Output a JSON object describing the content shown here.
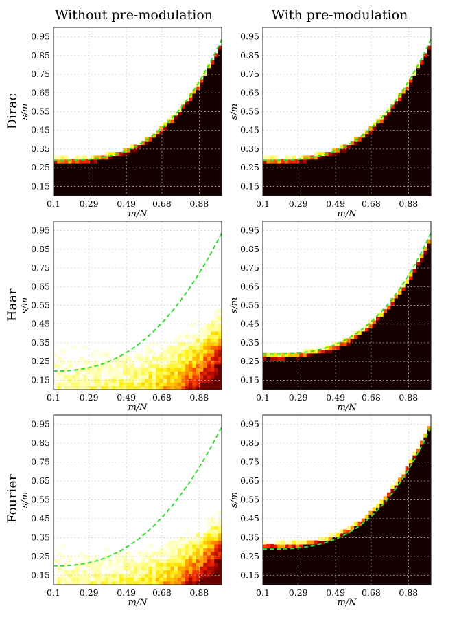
{
  "figure": {
    "column_titles": [
      "Without pre-modulation",
      "With pre-modulation"
    ],
    "row_labels": [
      "Dirac",
      "Haar",
      "Fourier"
    ]
  },
  "chart_data": [
    {
      "type": "heatmap",
      "row": "Dirac",
      "column": "Without pre-modulation",
      "xlabel": "m/N",
      "ylabel": "s/m",
      "xticks": [
        "0.1",
        "0.29",
        "0.49",
        "0.68",
        "0.88"
      ],
      "yticks": [
        "0.15",
        "0.25",
        "0.35",
        "0.45",
        "0.55",
        "0.65",
        "0.75",
        "0.85",
        "0.95"
      ],
      "xlim": [
        0.1,
        1.0
      ],
      "ylim": [
        0.1,
        1.0
      ],
      "transition_start": 0.21,
      "transition_curvature": 0.7,
      "transition_width": 0.04,
      "dashed_curve": "phase transition (green dashed)",
      "grid": true
    },
    {
      "type": "heatmap",
      "row": "Dirac",
      "column": "With pre-modulation",
      "xlabel": "m/N",
      "ylabel": "s/m",
      "xticks": [
        "0.1",
        "0.29",
        "0.49",
        "0.68",
        "0.88"
      ],
      "yticks": [
        "0.15",
        "0.25",
        "0.35",
        "0.45",
        "0.55",
        "0.65",
        "0.75",
        "0.85",
        "0.95"
      ],
      "xlim": [
        0.1,
        1.0
      ],
      "ylim": [
        0.1,
        1.0
      ],
      "transition_start": 0.21,
      "transition_curvature": 0.7,
      "transition_width": 0.04,
      "grid": true
    },
    {
      "type": "heatmap",
      "row": "Haar",
      "column": "Without pre-modulation",
      "xlabel": "m/N",
      "ylabel": "s/m",
      "xticks": [
        "0.1",
        "0.29",
        "0.49",
        "0.68",
        "0.88"
      ],
      "yticks": [
        "0.15",
        "0.25",
        "0.35",
        "0.45",
        "0.55",
        "0.65",
        "0.75",
        "0.85",
        "0.95"
      ],
      "xlim": [
        0.1,
        1.0
      ],
      "ylim": [
        0.1,
        1.0
      ],
      "transition_start": 0.03,
      "transition_curvature": 0.3,
      "transition_width": 0.12,
      "diffuse": true,
      "grid": true
    },
    {
      "type": "heatmap",
      "row": "Haar",
      "column": "With pre-modulation",
      "xlabel": "m/N",
      "ylabel": "s/m",
      "xticks": [
        "0.1",
        "0.29",
        "0.49",
        "0.68",
        "0.88"
      ],
      "yticks": [
        "0.15",
        "0.25",
        "0.35",
        "0.45",
        "0.55",
        "0.65",
        "0.75",
        "0.85",
        "0.95"
      ],
      "xlim": [
        0.1,
        1.0
      ],
      "ylim": [
        0.1,
        1.0
      ],
      "transition_start": 0.2,
      "transition_curvature": 0.7,
      "transition_width": 0.04,
      "grid": true
    },
    {
      "type": "heatmap",
      "row": "Fourier",
      "column": "Without pre-modulation",
      "xlabel": "m/N",
      "ylabel": "s/m",
      "xticks": [
        "0.1",
        "0.29",
        "0.49",
        "0.68",
        "0.88"
      ],
      "yticks": [
        "0.15",
        "0.25",
        "0.35",
        "0.45",
        "0.55",
        "0.65",
        "0.75",
        "0.85",
        "0.95"
      ],
      "xlim": [
        0.1,
        1.0
      ],
      "ylim": [
        0.1,
        1.0
      ],
      "transition_start": 0.0,
      "transition_curvature": 0.28,
      "transition_width": 0.1,
      "diffuse": true,
      "grid": true
    },
    {
      "type": "heatmap",
      "row": "Fourier",
      "column": "With pre-modulation",
      "xlabel": "m/N",
      "ylabel": "s/m",
      "xticks": [
        "0.1",
        "0.29",
        "0.49",
        "0.68",
        "0.88"
      ],
      "yticks": [
        "0.15",
        "0.25",
        "0.35",
        "0.45",
        "0.55",
        "0.65",
        "0.75",
        "0.85",
        "0.95"
      ],
      "xlim": [
        0.1,
        1.0
      ],
      "ylim": [
        0.1,
        1.0
      ],
      "transition_start": 0.23,
      "transition_curvature": 0.72,
      "transition_width": 0.04,
      "grid": true
    }
  ],
  "colors": {
    "background": "#ffffff",
    "dashed_curve": "#33dd33",
    "grid": "#c8c8c8",
    "colormap": [
      "#ffffff",
      "#ffff99",
      "#ffee00",
      "#ff9900",
      "#ee2200",
      "#880000",
      "#150000"
    ]
  }
}
